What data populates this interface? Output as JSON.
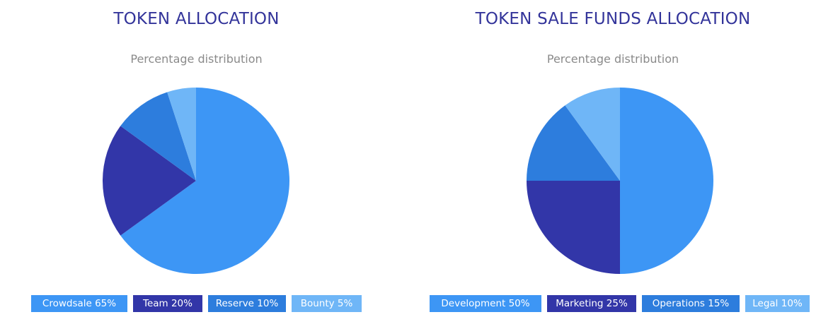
{
  "chart_data": [
    {
      "type": "pie",
      "title": "TOKEN ALLOCATION",
      "subtitle": "Percentage distribution",
      "categories": [
        "Crowdsale",
        "Team",
        "Reserve",
        "Bounty"
      ],
      "values": [
        65,
        20,
        10,
        5
      ],
      "colors": [
        "#3d96f5",
        "#3236a8",
        "#2d7ddd",
        "#6fb6f7"
      ],
      "legend": [
        "Crowdsale 65%",
        "Team 20%",
        "Reserve 10%",
        "Bounty 5%"
      ],
      "legend_placement": "bottom"
    },
    {
      "type": "pie",
      "title": "TOKEN SALE FUNDS ALLOCATION",
      "subtitle": "Percentage distribution",
      "categories": [
        "Development",
        "Marketing",
        "Operations",
        "Legal"
      ],
      "values": [
        50,
        25,
        15,
        10
      ],
      "colors": [
        "#3d96f5",
        "#3236a8",
        "#2d7ddd",
        "#6fb6f7"
      ],
      "legend": [
        "Development 50%",
        "Marketing 25%",
        "Operations 15%",
        "Legal 10%"
      ],
      "legend_placement": "bottom"
    }
  ]
}
